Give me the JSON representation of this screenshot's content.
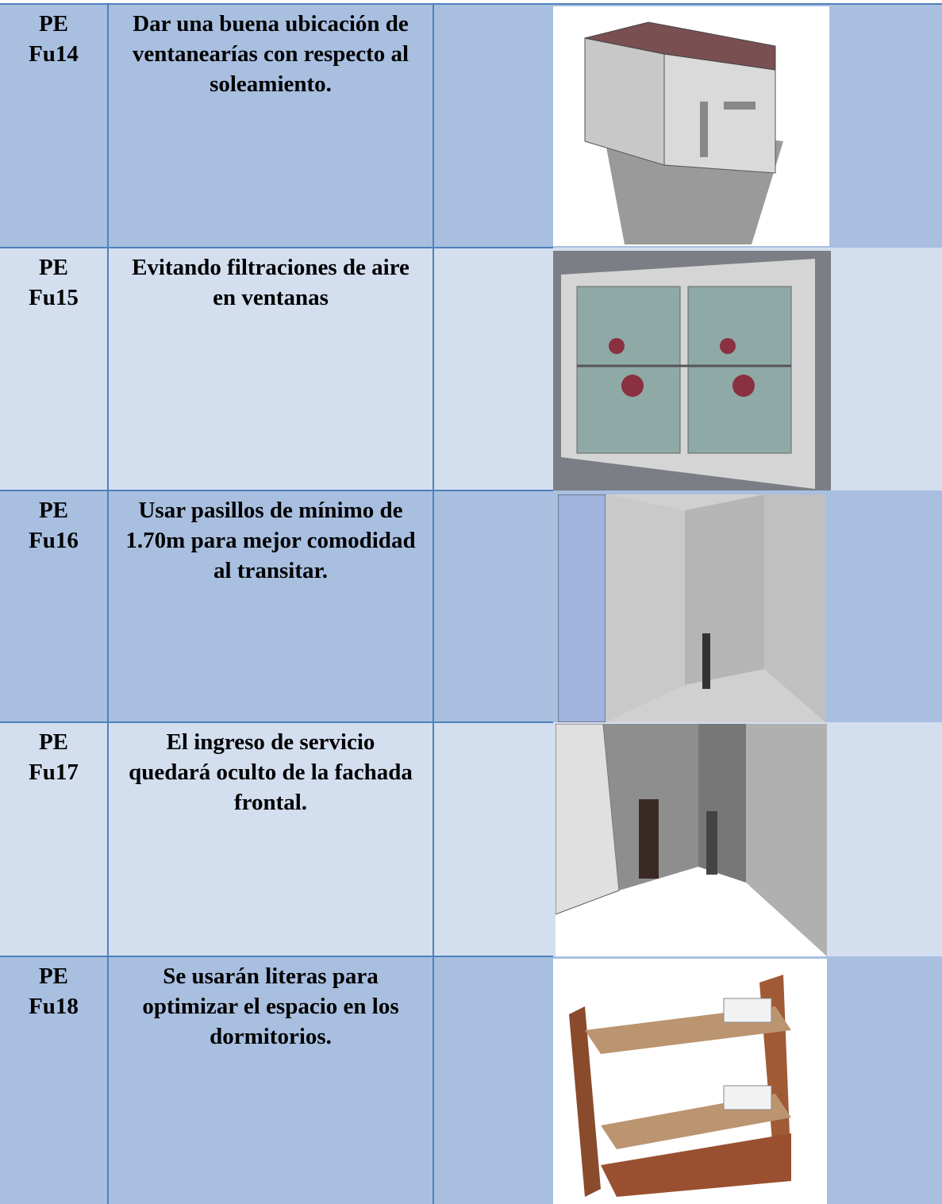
{
  "rows": [
    {
      "prefix": "PE",
      "id": "Fu14",
      "text": "Dar una buena ubicación de ventanearías con respecto al soleamiento."
    },
    {
      "prefix": "PE",
      "id": "Fu15",
      "text": "Evitando filtraciones de aire en ventanas"
    },
    {
      "prefix": "PE",
      "id": "Fu16",
      "text": "Usar pasillos de mínimo de 1.70m para mejor comodidad al transitar."
    },
    {
      "prefix": "PE",
      "id": "Fu17",
      "text": "El ingreso de servicio quedará oculto de la fachada frontal."
    },
    {
      "prefix": "PE",
      "id": "Fu18",
      "text": "Se usarán literas para optimizar el espacio en los dormitorios."
    }
  ]
}
